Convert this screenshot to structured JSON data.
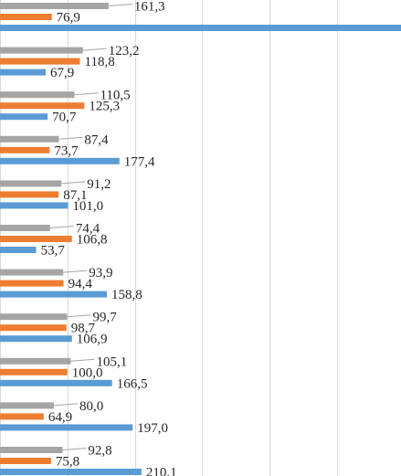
{
  "chart_data": {
    "type": "bar",
    "orientation": "horizontal",
    "title": "",
    "xlabel": "",
    "ylabel": "",
    "grid": true,
    "legend": "none",
    "categories": [
      "",
      "",
      "",
      "",
      "",
      "",
      "",
      "",
      "",
      "",
      ""
    ],
    "series": [
      {
        "color": "#a5a5a5",
        "values": [
          161.3,
          123.2,
          110.5,
          87.4,
          91.2,
          74.4,
          93.9,
          99.7,
          105.1,
          80.0,
          92.8
        ],
        "labels": [
          "161,3",
          "123,2",
          "110,5",
          "87,4",
          "91,2",
          "74,4",
          "93,9",
          "99,7",
          "105,1",
          "80,0",
          "92,8"
        ]
      },
      {
        "color": "#ed7d31",
        "values": [
          76.9,
          118.8,
          125.3,
          73.7,
          87.1,
          106.8,
          94.4,
          98.7,
          100.0,
          64.9,
          75.8
        ],
        "labels": [
          "76,9",
          "118,8",
          "125,3",
          "73,7",
          "87,1",
          "106,8",
          "94,4",
          "98,7",
          "100,0",
          "64,9",
          "75,8"
        ]
      },
      {
        "color": "#5b9bd5",
        "values": [
          null,
          67.9,
          70.7,
          177.4,
          101.0,
          53.7,
          158.8,
          106.9,
          166.5,
          197.0,
          210.1
        ],
        "labels": [
          "",
          "67,9",
          "70,7",
          "177,4",
          "101,0",
          "53,7",
          "158,8",
          "106,9",
          "166,5",
          "197,0",
          "210,1"
        ],
        "first_bar_clipped": true
      }
    ]
  }
}
